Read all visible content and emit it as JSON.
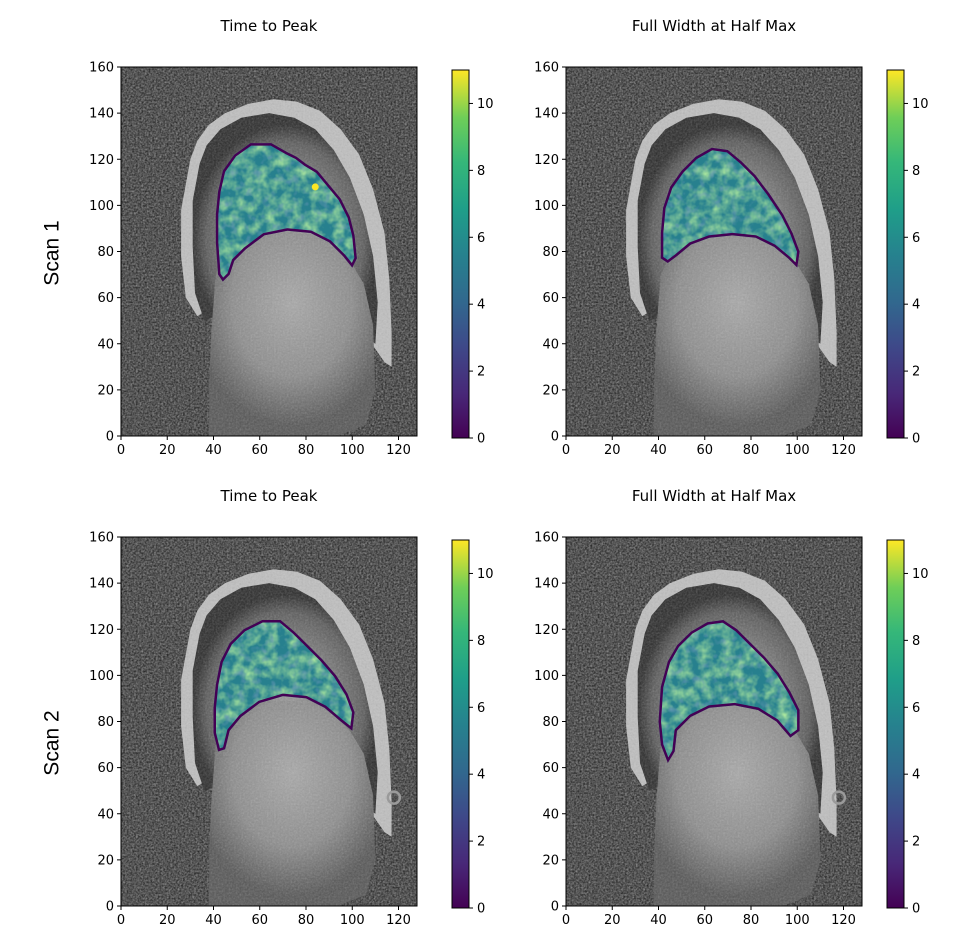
{
  "row_labels": [
    "Scan 1",
    "Scan 2"
  ],
  "chart_data": [
    {
      "type": "heatmap",
      "row": "Scan 1",
      "title": "Time to Peak",
      "xlabel": "",
      "ylabel": "",
      "xlim": [
        0,
        128
      ],
      "ylim": [
        0,
        160
      ],
      "xticks": [
        0,
        20,
        40,
        60,
        80,
        100,
        120
      ],
      "yticks": [
        0,
        20,
        40,
        60,
        80,
        100,
        120,
        140,
        160
      ],
      "colorbar": {
        "colormap": "viridis",
        "range": [
          0,
          11
        ],
        "ticks": [
          0,
          2,
          4,
          6,
          8,
          10
        ]
      },
      "overlay_region": [
        [
          42,
          106
        ],
        [
          44,
          115
        ],
        [
          49,
          122
        ],
        [
          56,
          127
        ],
        [
          65,
          127
        ],
        [
          72,
          123
        ],
        [
          76,
          121
        ],
        [
          80,
          118
        ],
        [
          85,
          115
        ],
        [
          90,
          109
        ],
        [
          95,
          103
        ],
        [
          99,
          95
        ],
        [
          101,
          87
        ],
        [
          102,
          77
        ],
        [
          100,
          73
        ],
        [
          96,
          78
        ],
        [
          90,
          84
        ],
        [
          82,
          88
        ],
        [
          72,
          89
        ],
        [
          62,
          87
        ],
        [
          54,
          81
        ],
        [
          49,
          76
        ],
        [
          47,
          70
        ],
        [
          44,
          67
        ],
        [
          42,
          70
        ],
        [
          41,
          84
        ],
        [
          41,
          96
        ]
      ],
      "hotspot": {
        "x": 84,
        "y": 108,
        "value": 11
      },
      "value_range_shown": [
        5,
        10
      ]
    },
    {
      "type": "heatmap",
      "row": "Scan 1",
      "title": "Full Width at Half Max",
      "xlabel": "",
      "ylabel": "",
      "xlim": [
        0,
        128
      ],
      "ylim": [
        0,
        160
      ],
      "xticks": [
        0,
        20,
        40,
        60,
        80,
        100,
        120
      ],
      "yticks": [
        0,
        20,
        40,
        60,
        80,
        100,
        120,
        140,
        160
      ],
      "colorbar": {
        "colormap": "viridis",
        "range": [
          0,
          11
        ],
        "ticks": [
          0,
          2,
          4,
          6,
          8,
          10
        ]
      },
      "overlay_region": [
        [
          42,
          99
        ],
        [
          45,
          108
        ],
        [
          50,
          115
        ],
        [
          56,
          121
        ],
        [
          63,
          125
        ],
        [
          70,
          124
        ],
        [
          76,
          119
        ],
        [
          82,
          113
        ],
        [
          88,
          105
        ],
        [
          94,
          96
        ],
        [
          98,
          88
        ],
        [
          101,
          80
        ],
        [
          100,
          73
        ],
        [
          96,
          77
        ],
        [
          90,
          82
        ],
        [
          82,
          86
        ],
        [
          72,
          87
        ],
        [
          62,
          86
        ],
        [
          54,
          83
        ],
        [
          48,
          78
        ],
        [
          44,
          75
        ],
        [
          41,
          77
        ],
        [
          41,
          88
        ]
      ],
      "hotspot": null,
      "value_range_shown": [
        5,
        9
      ]
    },
    {
      "type": "heatmap",
      "row": "Scan 2",
      "title": "Time to Peak",
      "xlabel": "",
      "ylabel": "",
      "xlim": [
        0,
        128
      ],
      "ylim": [
        0,
        160
      ],
      "xticks": [
        0,
        20,
        40,
        60,
        80,
        100,
        120
      ],
      "yticks": [
        0,
        20,
        40,
        60,
        80,
        100,
        120,
        140,
        160
      ],
      "colorbar": {
        "colormap": "viridis",
        "range": [
          0,
          11
        ],
        "ticks": [
          0,
          2,
          4,
          6,
          8,
          10
        ]
      },
      "overlay_region": [
        [
          41,
          96
        ],
        [
          43,
          106
        ],
        [
          47,
          114
        ],
        [
          53,
          120
        ],
        [
          61,
          124
        ],
        [
          69,
          124
        ],
        [
          75,
          119
        ],
        [
          81,
          113
        ],
        [
          87,
          107
        ],
        [
          93,
          100
        ],
        [
          98,
          92
        ],
        [
          101,
          84
        ],
        [
          100,
          76
        ],
        [
          95,
          80
        ],
        [
          88,
          86
        ],
        [
          80,
          90
        ],
        [
          70,
          91
        ],
        [
          60,
          88
        ],
        [
          52,
          82
        ],
        [
          47,
          76
        ],
        [
          45,
          68
        ],
        [
          42,
          67
        ],
        [
          40,
          75
        ],
        [
          40,
          86
        ]
      ],
      "hotspot": null,
      "value_range_shown": [
        5,
        10
      ]
    },
    {
      "type": "heatmap",
      "row": "Scan 2",
      "title": "Full Width at Half Max",
      "xlabel": "",
      "ylabel": "",
      "xlim": [
        0,
        128
      ],
      "ylim": [
        0,
        160
      ],
      "xticks": [
        0,
        20,
        40,
        60,
        80,
        100,
        120
      ],
      "yticks": [
        0,
        20,
        40,
        60,
        80,
        100,
        120,
        140,
        160
      ],
      "colorbar": {
        "colormap": "viridis",
        "range": [
          0,
          11
        ],
        "ticks": [
          0,
          2,
          4,
          6,
          8,
          10
        ]
      },
      "overlay_region": [
        [
          41,
          95
        ],
        [
          44,
          106
        ],
        [
          48,
          113
        ],
        [
          54,
          119
        ],
        [
          61,
          123
        ],
        [
          68,
          124
        ],
        [
          74,
          120
        ],
        [
          80,
          114
        ],
        [
          86,
          108
        ],
        [
          92,
          101
        ],
        [
          97,
          93
        ],
        [
          101,
          85
        ],
        [
          101,
          76
        ],
        [
          97,
          73
        ],
        [
          91,
          80
        ],
        [
          83,
          85
        ],
        [
          73,
          87
        ],
        [
          62,
          86
        ],
        [
          54,
          82
        ],
        [
          48,
          76
        ],
        [
          47,
          67
        ],
        [
          44,
          62
        ],
        [
          41,
          70
        ],
        [
          40,
          80
        ]
      ],
      "hotspot": null,
      "value_range_shown": [
        5,
        9
      ]
    }
  ]
}
